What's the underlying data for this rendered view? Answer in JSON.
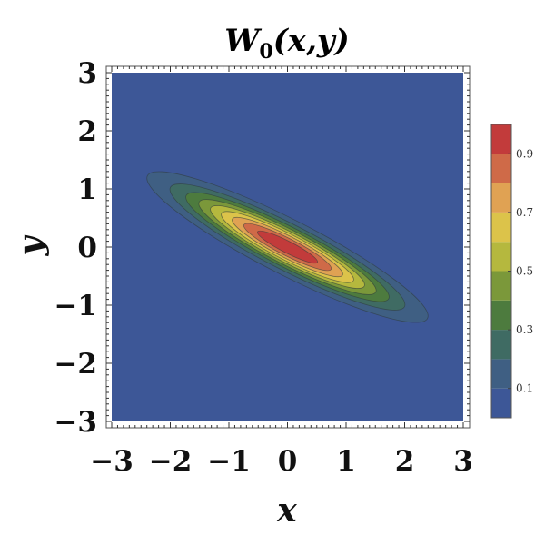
{
  "chart_data": {
    "type": "contour",
    "title": "W",
    "title_subscript": "0",
    "title_args": "(x,y)",
    "xlabel": "x",
    "ylabel": "y",
    "xlim": [
      -3,
      3
    ],
    "ylim": [
      -3,
      3
    ],
    "xticks": [
      {
        "value": -3,
        "label": "−3"
      },
      {
        "value": -2,
        "label": "−2"
      },
      {
        "value": -1,
        "label": "−1"
      },
      {
        "value": 0,
        "label": "0"
      },
      {
        "value": 1,
        "label": "1"
      },
      {
        "value": 2,
        "label": "2"
      },
      {
        "value": 3,
        "label": "3"
      }
    ],
    "yticks": [
      {
        "value": 3,
        "label": "3"
      },
      {
        "value": 2,
        "label": "2"
      },
      {
        "value": 1,
        "label": "1"
      },
      {
        "value": 0,
        "label": "0"
      },
      {
        "value": -1,
        "label": "−1"
      },
      {
        "value": -2,
        "label": "−2"
      },
      {
        "value": -3,
        "label": "−3"
      }
    ],
    "contour": {
      "center": [
        0,
        0
      ],
      "peak_value": 1.0,
      "major_axis_angle_deg": -27,
      "sigma_major": 1.25,
      "sigma_minor": 0.22,
      "levels": [
        0.1,
        0.2,
        0.3,
        0.4,
        0.5,
        0.6,
        0.7,
        0.8,
        0.9
      ]
    },
    "colorbar": {
      "range": [
        0,
        1
      ],
      "bands": [
        {
          "from": 0.0,
          "to": 0.1,
          "color": "#3d5797"
        },
        {
          "from": 0.1,
          "to": 0.2,
          "color": "#3f5f83"
        },
        {
          "from": 0.2,
          "to": 0.3,
          "color": "#3f6b63"
        },
        {
          "from": 0.3,
          "to": 0.4,
          "color": "#4d7b3e"
        },
        {
          "from": 0.4,
          "to": 0.5,
          "color": "#7b983a"
        },
        {
          "from": 0.5,
          "to": 0.6,
          "color": "#b5b83e"
        },
        {
          "from": 0.6,
          "to": 0.7,
          "color": "#dcc34a"
        },
        {
          "from": 0.7,
          "to": 0.8,
          "color": "#e0a253"
        },
        {
          "from": 0.8,
          "to": 0.9,
          "color": "#cf6a48"
        },
        {
          "from": 0.9,
          "to": 1.0,
          "color": "#c23b3b"
        }
      ],
      "labels": [
        {
          "value": 0.1,
          "label": "0.1"
        },
        {
          "value": 0.3,
          "label": "0.3"
        },
        {
          "value": 0.5,
          "label": "0.5"
        },
        {
          "value": 0.7,
          "label": "0.7"
        },
        {
          "value": 0.9,
          "label": "0.9"
        }
      ]
    }
  }
}
